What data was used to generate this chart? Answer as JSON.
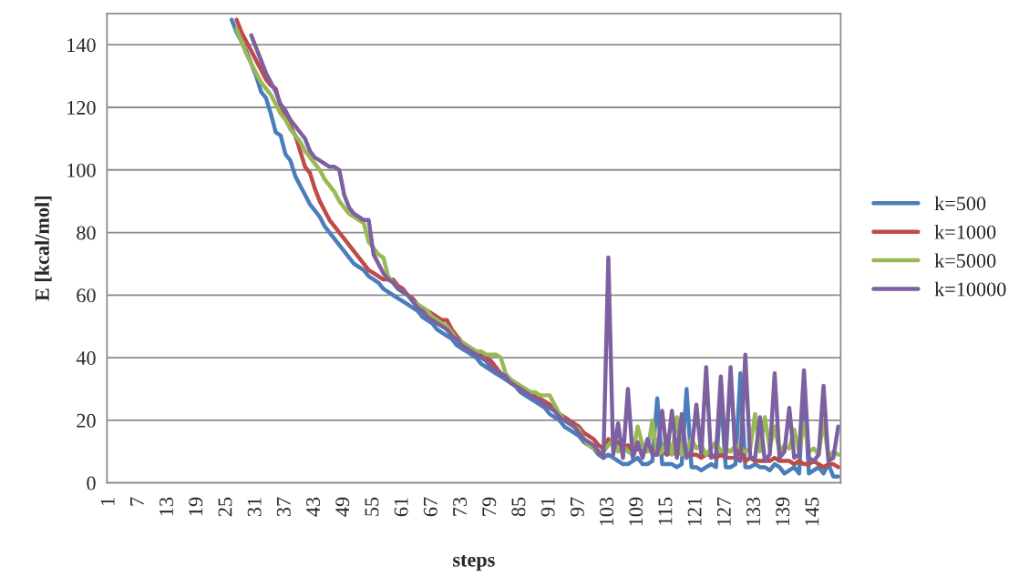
{
  "chart_data": {
    "type": "line",
    "xlabel": "steps",
    "ylabel": "E [kcal/mol]",
    "categories": [
      "1",
      null,
      null,
      null,
      null,
      null,
      "7",
      null,
      null,
      null,
      null,
      null,
      "13",
      null,
      null,
      null,
      null,
      null,
      "19",
      null,
      null,
      null,
      null,
      null,
      "25",
      null,
      null,
      null,
      null,
      null,
      "31",
      null,
      null,
      null,
      null,
      null,
      "37",
      null,
      null,
      null,
      null,
      null,
      "43",
      null,
      null,
      null,
      null,
      null,
      "49",
      null,
      null,
      null,
      null,
      null,
      "55",
      null,
      null,
      null,
      null,
      null,
      "61",
      null,
      null,
      null,
      null,
      null,
      "67",
      null,
      null,
      null,
      null,
      null,
      "73",
      null,
      null,
      null,
      null,
      null,
      "79",
      null,
      null,
      null,
      null,
      null,
      "85",
      null,
      null,
      null,
      null,
      null,
      "91",
      null,
      null,
      null,
      null,
      null,
      "97",
      null,
      null,
      null,
      null,
      null,
      "103",
      null,
      null,
      null,
      null,
      null,
      "109",
      null,
      null,
      null,
      null,
      null,
      "115",
      null,
      null,
      null,
      null,
      null,
      "121",
      null,
      null,
      null,
      null,
      null,
      "127",
      null,
      null,
      null,
      null,
      null,
      "133",
      null,
      null,
      null,
      null,
      null,
      "139",
      null,
      null,
      null,
      null,
      null,
      "145",
      null,
      null,
      null,
      null,
      null
    ],
    "ylim": [
      0,
      150
    ],
    "yticks": [
      0,
      20,
      40,
      60,
      80,
      100,
      120,
      140
    ],
    "grid": "y",
    "legend": "right",
    "line_style": "solid",
    "series": [
      {
        "name": "k=500",
        "color": "#4a7ebb",
        "values": [
          null,
          null,
          null,
          null,
          null,
          null,
          null,
          null,
          null,
          null,
          null,
          null,
          null,
          null,
          null,
          null,
          null,
          null,
          null,
          null,
          null,
          null,
          null,
          null,
          null,
          148,
          144,
          141,
          138,
          134,
          130,
          125,
          123,
          118,
          112,
          111,
          105,
          103,
          98,
          95,
          92,
          89,
          87,
          85,
          82,
          80,
          78,
          76,
          74,
          72,
          70,
          69,
          68,
          66,
          65,
          64,
          62,
          61,
          60,
          59,
          58,
          57,
          56,
          55,
          53,
          52,
          51,
          49,
          48,
          47,
          46,
          44,
          43,
          42,
          41,
          40,
          38,
          37,
          36,
          35,
          34,
          33,
          32,
          31,
          29,
          28,
          27,
          26,
          25,
          24,
          22,
          21,
          20,
          18,
          17,
          16,
          15,
          13,
          12,
          11,
          9,
          8,
          9,
          8,
          7,
          6,
          6,
          7,
          8,
          6,
          6,
          7,
          27,
          6,
          6,
          6,
          5,
          6,
          30,
          5,
          5,
          4,
          5,
          6,
          5,
          28,
          5,
          5,
          6,
          35,
          5,
          5,
          6,
          5,
          5,
          4,
          6,
          5,
          3,
          4,
          5,
          3,
          31,
          3,
          4,
          5,
          3,
          6,
          2,
          2
        ]
      },
      {
        "name": "k=1000",
        "color": "#be4b48",
        "values": [
          null,
          null,
          null,
          null,
          null,
          null,
          null,
          null,
          null,
          null,
          null,
          null,
          null,
          null,
          null,
          null,
          null,
          null,
          null,
          null,
          null,
          null,
          null,
          null,
          null,
          null,
          148,
          144,
          141,
          138,
          135,
          132,
          129,
          127,
          126,
          120,
          117,
          114,
          111,
          106,
          101,
          99,
          94,
          90,
          87,
          84,
          82,
          80,
          78,
          76,
          74,
          72,
          70,
          68,
          67,
          66,
          65,
          65,
          65,
          63,
          62,
          60,
          59,
          57,
          56,
          55,
          54,
          53,
          52,
          52,
          49,
          47,
          45,
          44,
          43,
          42,
          41,
          40,
          39,
          37,
          35,
          34,
          33,
          32,
          31,
          30,
          29,
          28,
          27,
          26,
          25,
          24,
          22,
          21,
          20,
          19,
          18,
          16,
          15,
          14,
          12,
          11,
          14,
          12,
          13,
          11,
          12,
          10,
          11,
          10,
          11,
          10,
          10,
          10,
          9,
          10,
          9,
          10,
          9,
          9,
          9,
          8,
          9,
          9,
          8,
          9,
          8,
          8,
          8,
          11,
          7,
          8,
          7,
          7,
          7,
          7,
          8,
          7,
          7,
          7,
          6,
          7,
          6,
          6,
          7,
          6,
          5,
          6,
          6,
          5
        ]
      },
      {
        "name": "k=5000",
        "color": "#98b954",
        "values": [
          null,
          null,
          null,
          null,
          null,
          null,
          null,
          null,
          null,
          null,
          null,
          null,
          null,
          null,
          null,
          null,
          null,
          null,
          null,
          null,
          null,
          null,
          null,
          null,
          null,
          null,
          145,
          141,
          137,
          134,
          131,
          128,
          126,
          124,
          121,
          118,
          116,
          113,
          111,
          109,
          106,
          104,
          102,
          100,
          97,
          95,
          93,
          90,
          88,
          86,
          85,
          84,
          83,
          77,
          75,
          73,
          72,
          66,
          64,
          62,
          61,
          60,
          58,
          57,
          56,
          55,
          53,
          52,
          51,
          50,
          48,
          46,
          45,
          44,
          43,
          42,
          42,
          41,
          41,
          41,
          40,
          35,
          33,
          32,
          31,
          30,
          29,
          29,
          28,
          28,
          28,
          25,
          22,
          20,
          19,
          18,
          17,
          14,
          12,
          11,
          10,
          10,
          12,
          14,
          10,
          12,
          10,
          9,
          18,
          12,
          10,
          20,
          9,
          10,
          15,
          9,
          21,
          9,
          10,
          14,
          11,
          12,
          9,
          11,
          13,
          10,
          11,
          10,
          12,
          11,
          10,
          11,
          22,
          10,
          21,
          11,
          18,
          10,
          12,
          11,
          17,
          10,
          19,
          10,
          11,
          9,
          20,
          8,
          10,
          9
        ]
      },
      {
        "name": "k=10000",
        "color": "#7d60a0",
        "values": [
          null,
          null,
          null,
          null,
          null,
          null,
          null,
          null,
          null,
          null,
          null,
          null,
          null,
          null,
          null,
          null,
          null,
          null,
          null,
          null,
          null,
          null,
          null,
          null,
          null,
          null,
          null,
          null,
          null,
          143,
          139,
          135,
          131,
          128,
          125,
          121,
          119,
          116,
          114,
          112,
          110,
          106,
          104,
          103,
          102,
          101,
          101,
          100,
          92,
          88,
          86,
          85,
          84,
          84,
          73,
          70,
          67,
          65,
          64,
          62,
          61,
          60,
          58,
          56,
          55,
          53,
          52,
          51,
          50,
          49,
          47,
          46,
          44,
          43,
          42,
          41,
          40,
          39,
          37,
          36,
          35,
          34,
          32,
          31,
          30,
          29,
          28,
          27,
          26,
          25,
          24,
          23,
          21,
          20,
          19,
          18,
          16,
          14,
          13,
          12,
          10,
          8,
          72,
          9,
          19,
          8,
          30,
          8,
          13,
          8,
          14,
          9,
          9,
          23,
          9,
          23,
          8,
          22,
          8,
          10,
          25,
          9,
          37,
          8,
          9,
          34,
          8,
          37,
          8,
          7,
          41,
          8,
          8,
          21,
          7,
          9,
          35,
          8,
          10,
          24,
          8,
          9,
          36,
          8,
          7,
          9,
          31,
          7,
          8,
          18
        ]
      }
    ]
  }
}
